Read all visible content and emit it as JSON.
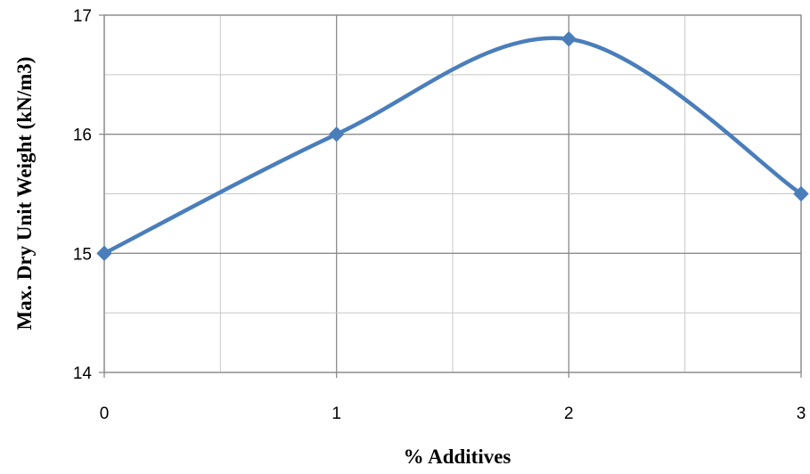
{
  "chart_data": {
    "type": "line",
    "title": "",
    "xlabel": "% Additives",
    "ylabel": "Max. Dry Unit Weight  (kN/m3)",
    "x": [
      0,
      1,
      2,
      3
    ],
    "series": [
      {
        "values": [
          15.0,
          16.0,
          16.8,
          15.5
        ]
      }
    ],
    "xlim": [
      0,
      3
    ],
    "ylim": [
      14,
      17
    ],
    "x_ticks": [
      "0",
      "1",
      "2",
      "3"
    ],
    "y_ticks": [
      "14",
      "15",
      "16",
      "17"
    ],
    "grid": true,
    "smooth": true,
    "legend": "none",
    "line_color": "#4a7ebb",
    "marker": "diamond"
  }
}
